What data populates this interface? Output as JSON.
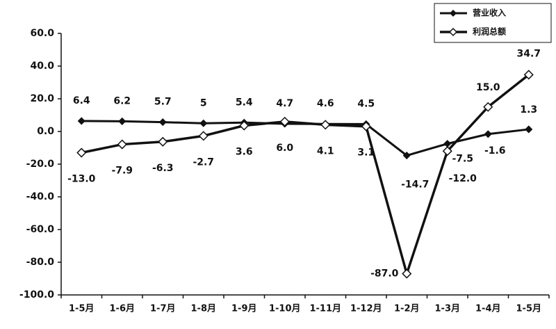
{
  "chart_data": {
    "type": "line",
    "categories": [
      "1-5月",
      "1-6月",
      "1-7月",
      "1-8月",
      "1-9月",
      "1-10月",
      "1-11月",
      "1-12月",
      "1-2月",
      "1-3月",
      "1-4月",
      "1-5月"
    ],
    "series": [
      {
        "name": "营业收入",
        "color": "#111111",
        "marker": "filled-diamond",
        "values": [
          6.4,
          6.2,
          5.7,
          5.0,
          5.4,
          4.7,
          4.6,
          4.5,
          -14.7,
          -7.5,
          -1.6,
          1.3
        ]
      },
      {
        "name": "利润总额",
        "color": "#111111",
        "marker": "open-diamond",
        "values": [
          -13.0,
          -7.9,
          -6.3,
          -2.7,
          3.6,
          6.0,
          4.1,
          3.1,
          -87.0,
          -12.0,
          15.0,
          34.7
        ],
        "value_labels": [
          "-13.0",
          "-7.9",
          "-6.3",
          "-2.7",
          "3.6",
          "6.0",
          "4.1",
          "3.1",
          "-87.0",
          "-12.0",
          "15.0",
          "34.7"
        ]
      }
    ],
    "ylim": [
      -100,
      60
    ],
    "yticks": [
      {
        "value": -100,
        "label": "-100.0"
      },
      {
        "value": -80,
        "label": "-80.0"
      },
      {
        "value": -60,
        "label": "-60.0"
      },
      {
        "value": -40,
        "label": "-40.0"
      },
      {
        "value": -20,
        "label": "-20.0"
      },
      {
        "value": 0,
        "label": "0.0"
      },
      {
        "value": 20,
        "label": "20.0"
      },
      {
        "value": 40,
        "label": "40.0"
      },
      {
        "value": 60,
        "label": "60.0"
      }
    ],
    "grid": false,
    "legend": "upper right"
  }
}
